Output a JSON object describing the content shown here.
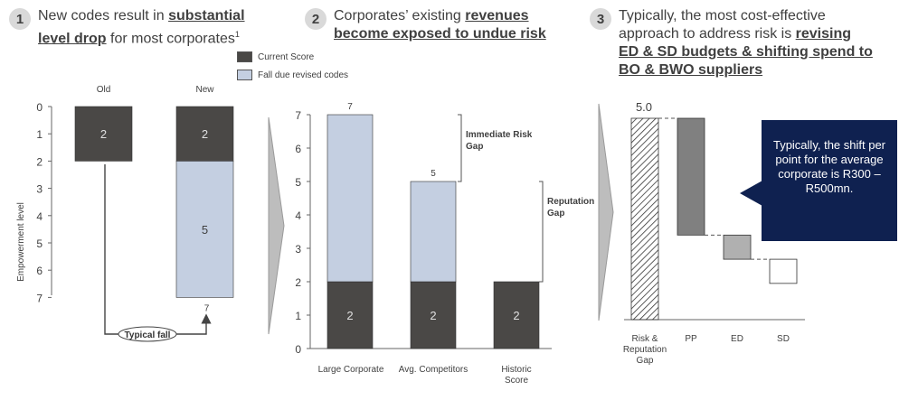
{
  "panels": [
    {
      "number": "1",
      "text_a": "New codes result in ",
      "bold": "substantial level drop",
      "text_b": " for most corporates",
      "superscript": "1"
    },
    {
      "number": "2",
      "text_a": "Corporates’ existing ",
      "bold": "revenues become exposed to undue risk",
      "text_b": "",
      "superscript": ""
    },
    {
      "number": "3",
      "text_a": "Typically, the most cost-effective approach to address risk is ",
      "bold": "revising ED & SD budgets & shifting spend to BO & BWO suppliers",
      "text_b": "",
      "superscript": ""
    }
  ],
  "legend": [
    {
      "label": "Current Score",
      "color": "#4a4846"
    },
    {
      "label": "Fall due revised codes",
      "color": "#c4cfe1"
    }
  ],
  "callout": "Typically, the shift per point for the average corporate is R300 – R500mn.",
  "chart_data": [
    {
      "type": "bar",
      "orientation": "stacked",
      "title": "",
      "ylabel": "Empowerment level",
      "y_axis_inverted": true,
      "ylim": [
        0,
        7
      ],
      "yticks": [
        "0",
        "1",
        "2",
        "3",
        "4",
        "5",
        "6",
        "7"
      ],
      "categories": [
        "Old",
        "New"
      ],
      "series": [
        {
          "name": "Current Score",
          "values": [
            2,
            2
          ],
          "labels": [
            "2",
            "2"
          ],
          "color": "#4a4846"
        },
        {
          "name": "Fall due revised codes",
          "values": [
            0,
            5
          ],
          "labels": [
            "",
            "5"
          ],
          "color": "#c4cfe1"
        }
      ],
      "total_labels": [
        "",
        "7"
      ],
      "annotation": "Typical fall"
    },
    {
      "type": "bar",
      "orientation": "stacked",
      "title": "",
      "ylim": [
        0,
        7
      ],
      "yticks": [
        "0",
        "1",
        "2",
        "3",
        "4",
        "5",
        "6",
        "7"
      ],
      "categories": [
        "Large Corporate",
        "Avg. Competitors",
        "Historic Score"
      ],
      "series": [
        {
          "name": "Current Score",
          "values": [
            2,
            2,
            2
          ],
          "labels": [
            "2",
            "2",
            "2"
          ],
          "color": "#4a4846"
        },
        {
          "name": "Fall due revised codes",
          "values": [
            5,
            3,
            0
          ],
          "color": "#c4cfe1"
        }
      ],
      "total_labels": [
        "7",
        "5",
        ""
      ],
      "brackets": [
        {
          "label": "Immediate Risk Gap",
          "from": 5,
          "to": 7
        },
        {
          "label": "Reputation Gap",
          "from": 2,
          "to": 5
        }
      ]
    },
    {
      "type": "bar",
      "orientation": "waterfall",
      "title": "",
      "categories": [
        "Risk & Reputation Gap",
        "PP",
        "ED",
        "SD"
      ],
      "values": [
        5.0,
        2.9,
        0.6,
        0.6
      ],
      "total_label": "5.0",
      "bar_styles": [
        "hatched",
        "#808080",
        "#b0b0b0",
        "#ffffff"
      ]
    }
  ]
}
